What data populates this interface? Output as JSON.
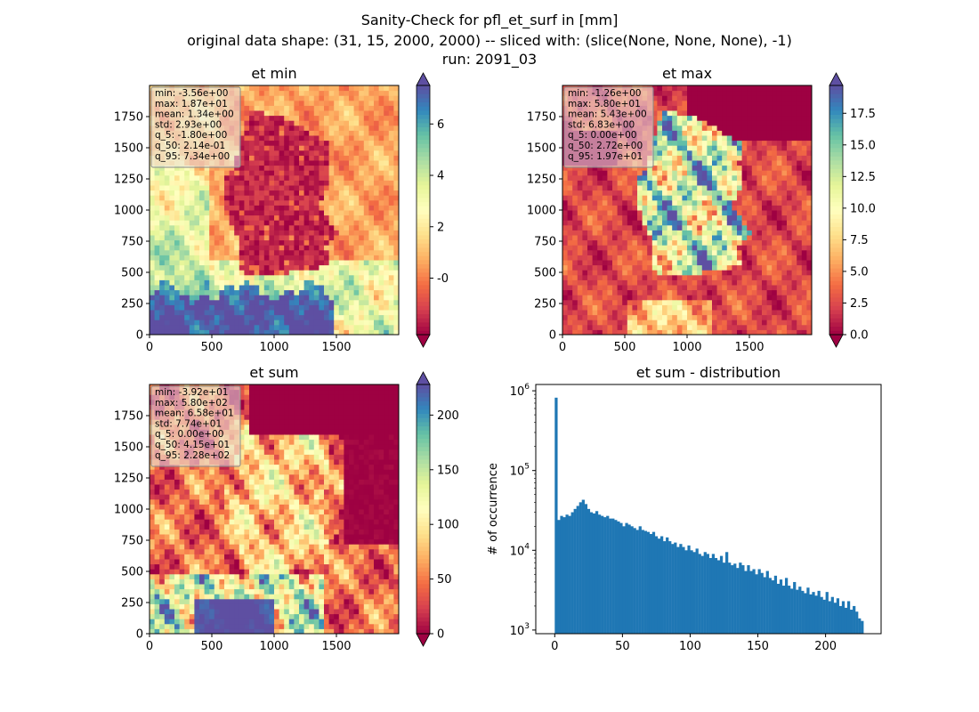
{
  "figure": {
    "title_line1": "Sanity-Check for pfl_et_surf in [mm]",
    "title_line2": "original data shape: (31, 15, 2000, 2000) -- sliced with: (slice(None, None, None), -1)",
    "title_line3": "run: 2091_03"
  },
  "colormap": "Spectral",
  "colors": {
    "hist_bar": "#1f77b4",
    "stats_box_bg": "#e8e8e8"
  },
  "chart_data": [
    {
      "type": "heatmap",
      "title": "et min",
      "xlim": [
        0,
        2000
      ],
      "ylim": [
        0,
        2000
      ],
      "x_ticks": [
        "0",
        "500",
        "1000",
        "1500"
      ],
      "y_ticks": [
        "0",
        "250",
        "500",
        "750",
        "1000",
        "1250",
        "1500",
        "1750"
      ],
      "colorbar": {
        "range": [
          -2.2,
          7.5
        ],
        "extend": "both",
        "ticks": [
          "-0",
          "2",
          "4",
          "6"
        ],
        "tick_values": [
          0,
          2,
          4,
          6
        ]
      },
      "stats": [
        "min: -3.56e+00",
        "max: 1.87e+01",
        "mean: 1.34e+00",
        "std: 2.93e+00",
        "q_5: -1.80e+00",
        "q_50: 2.14e-01",
        "q_95: 7.34e+00"
      ]
    },
    {
      "type": "heatmap",
      "title": "et max",
      "xlim": [
        0,
        2000
      ],
      "ylim": [
        0,
        2000
      ],
      "x_ticks": [
        "0",
        "500",
        "1000",
        "1500"
      ],
      "y_ticks": [
        "0",
        "250",
        "500",
        "750",
        "1000",
        "1250",
        "1500",
        "1750"
      ],
      "colorbar": {
        "range": [
          0,
          19.7
        ],
        "extend": "both",
        "ticks": [
          "0.0",
          "2.5",
          "5.0",
          "7.5",
          "10.0",
          "12.5",
          "15.0",
          "17.5"
        ],
        "tick_values": [
          0,
          2.5,
          5,
          7.5,
          10,
          12.5,
          15,
          17.5
        ]
      },
      "stats": [
        "min: -1.26e+00",
        "max: 5.80e+01",
        "mean: 5.43e+00",
        "std: 6.83e+00",
        "q_5: 0.00e+00",
        "q_50: 2.72e+00",
        "q_95: 1.97e+01"
      ]
    },
    {
      "type": "heatmap",
      "title": "et sum",
      "xlim": [
        0,
        2000
      ],
      "ylim": [
        0,
        2000
      ],
      "x_ticks": [
        "0",
        "500",
        "1000",
        "1500"
      ],
      "y_ticks": [
        "0",
        "250",
        "500",
        "750",
        "1000",
        "1250",
        "1500",
        "1750"
      ],
      "colorbar": {
        "range": [
          0,
          228
        ],
        "extend": "both",
        "ticks": [
          "0",
          "50",
          "100",
          "150",
          "200"
        ],
        "tick_values": [
          0,
          50,
          100,
          150,
          200
        ]
      },
      "stats": [
        "min: -3.92e+01",
        "max: 5.80e+02",
        "mean: 6.58e+01",
        "std: 7.74e+01",
        "q_5: 0.00e+00",
        "q_50: 4.15e+01",
        "q_95: 2.28e+02"
      ]
    },
    {
      "type": "bar",
      "title": "et sum - distribution",
      "xlabel": "",
      "ylabel": "# of occurrence",
      "xlim": [
        -14,
        241
      ],
      "ylim": [
        900,
        1200000
      ],
      "y_scale": "log",
      "x_ticks": [
        0,
        50,
        100,
        150,
        200
      ],
      "y_ticks": [
        1000,
        10000,
        100000,
        1000000
      ],
      "y_tick_labels": [
        [
          "10",
          "3"
        ],
        [
          "10",
          "4"
        ],
        [
          "10",
          "5"
        ],
        [
          "10",
          "6"
        ]
      ],
      "bin_width": 2,
      "bin_starts": [
        0,
        2,
        4,
        6,
        8,
        10,
        12,
        14,
        16,
        18,
        20,
        22,
        24,
        26,
        28,
        30,
        32,
        34,
        36,
        38,
        40,
        42,
        44,
        46,
        48,
        50,
        52,
        54,
        56,
        58,
        60,
        62,
        64,
        66,
        68,
        70,
        72,
        74,
        76,
        78,
        80,
        82,
        84,
        86,
        88,
        90,
        92,
        94,
        96,
        98,
        100,
        102,
        104,
        106,
        108,
        110,
        112,
        114,
        116,
        118,
        120,
        122,
        124,
        126,
        128,
        130,
        132,
        134,
        136,
        138,
        140,
        142,
        144,
        146,
        148,
        150,
        152,
        154,
        156,
        158,
        160,
        162,
        164,
        166,
        168,
        170,
        172,
        174,
        176,
        178,
        180,
        182,
        184,
        186,
        188,
        190,
        192,
        194,
        196,
        198,
        200,
        202,
        204,
        206,
        208,
        210,
        212,
        214,
        216,
        218,
        220,
        222,
        224,
        226
      ],
      "counts": [
        820000,
        24000,
        27000,
        26000,
        28000,
        27000,
        30000,
        33000,
        36000,
        40000,
        43000,
        38000,
        33000,
        30000,
        29000,
        31000,
        28000,
        27000,
        26000,
        27000,
        25000,
        25000,
        24000,
        23000,
        22000,
        20000,
        22000,
        21000,
        20000,
        19000,
        18000,
        20000,
        18000,
        17500,
        17000,
        16000,
        17000,
        15000,
        14000,
        15000,
        13000,
        14500,
        13000,
        12000,
        12500,
        11000,
        12000,
        11000,
        10000,
        11500,
        10000,
        9500,
        10500,
        9000,
        8500,
        9500,
        9000,
        8000,
        9000,
        8000,
        7500,
        8500,
        7000,
        9500,
        7000,
        6500,
        6800,
        6000,
        7000,
        6500,
        5500,
        6500,
        5500,
        5800,
        5000,
        5800,
        5200,
        4600,
        5500,
        4500,
        4200,
        4800,
        3800,
        4300,
        3600,
        4500,
        3600,
        3300,
        4000,
        3200,
        3500,
        3100,
        2900,
        3400,
        2800,
        3000,
        2700,
        3100,
        2600,
        2400,
        3000,
        2300,
        2600,
        2200,
        2500,
        2000,
        2300,
        1900,
        2300,
        1800,
        2000,
        1700,
        1400,
        1300
      ]
    }
  ]
}
